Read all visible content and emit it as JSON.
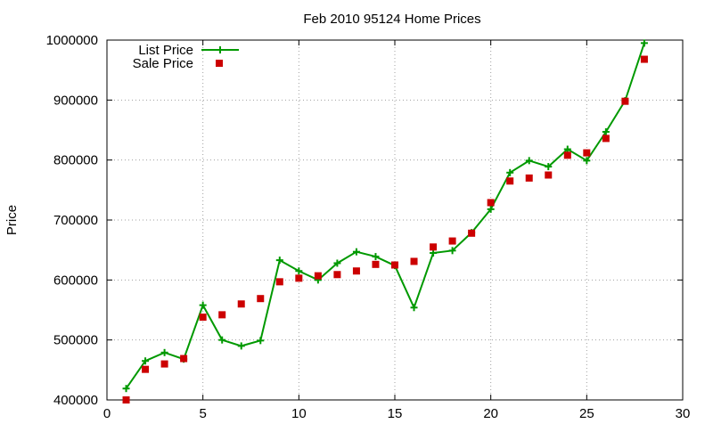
{
  "chart_data": {
    "type": "line",
    "title": "Feb 2010 95124 Home Prices",
    "xlabel": "",
    "ylabel": "Price",
    "xlim": [
      0,
      30
    ],
    "ylim": [
      400000,
      1000000
    ],
    "x_ticks": [
      0,
      5,
      10,
      15,
      20,
      25,
      30
    ],
    "y_ticks": [
      400000,
      500000,
      600000,
      700000,
      800000,
      900000,
      1000000
    ],
    "grid": true,
    "legend_position": "top-left",
    "series": [
      {
        "name": "List Price",
        "style": "line-with-plus-markers",
        "color": "#009900",
        "x": [
          1,
          2,
          3,
          4,
          5,
          6,
          7,
          8,
          9,
          10,
          11,
          12,
          13,
          14,
          15,
          16,
          17,
          18,
          19,
          20,
          21,
          22,
          23,
          24,
          25,
          26,
          27,
          28
        ],
        "values": [
          419000,
          465000,
          479000,
          468000,
          558000,
          500000,
          490000,
          499000,
          633000,
          615000,
          600000,
          628000,
          647000,
          639000,
          624000,
          554000,
          645000,
          649000,
          679000,
          718000,
          779000,
          799000,
          789000,
          818000,
          799000,
          847000,
          899000,
          995000
        ]
      },
      {
        "name": "Sale Price",
        "style": "square-markers",
        "color": "#cc0000",
        "x": [
          1,
          2,
          3,
          4,
          5,
          6,
          7,
          8,
          9,
          10,
          11,
          12,
          13,
          14,
          15,
          16,
          17,
          18,
          19,
          20,
          21,
          22,
          23,
          24,
          25,
          26,
          27,
          28
        ],
        "values": [
          400000,
          451000,
          460000,
          469000,
          538000,
          542000,
          560000,
          569000,
          597000,
          603000,
          607000,
          609000,
          615000,
          626000,
          625000,
          631000,
          655000,
          665000,
          678000,
          729000,
          765000,
          770000,
          775000,
          808000,
          812000,
          836000,
          898000,
          968000
        ]
      }
    ]
  }
}
